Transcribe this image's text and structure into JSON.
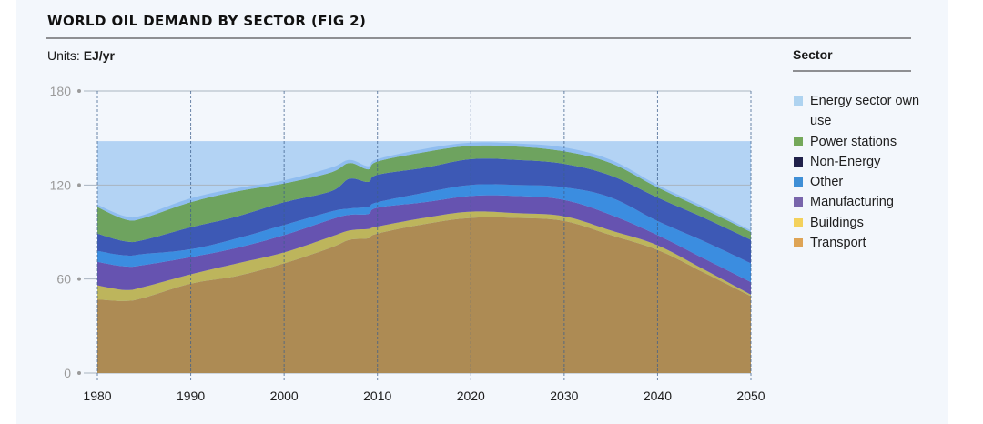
{
  "title": "WORLD OIL DEMAND BY SECTOR (FIG 2)",
  "units_label": "Units:",
  "units_value": "EJ/yr",
  "legend": {
    "title": "Sector",
    "items": [
      {
        "label": "Energy sector own use",
        "color": "#aed3f0"
      },
      {
        "label": "Power stations",
        "color": "#74a85a"
      },
      {
        "label": "Non-Energy",
        "color": "#20214a"
      },
      {
        "label": "Other",
        "color": "#3f8fd6"
      },
      {
        "label": "Manufacturing",
        "color": "#7865ab"
      },
      {
        "label": "Buildings",
        "color": "#f3d15c"
      },
      {
        "label": "Transport",
        "color": "#dea455"
      }
    ]
  },
  "chart_data": {
    "type": "area",
    "stacked": true,
    "title": "WORLD OIL DEMAND BY SECTOR (FIG 2)",
    "xlabel": "",
    "ylabel": "EJ/yr",
    "xlim": [
      1980,
      2050
    ],
    "ylim": [
      0,
      180
    ],
    "yticks": [
      0,
      60,
      120,
      180
    ],
    "xticks": [
      1980,
      1990,
      2000,
      2010,
      2020,
      2030,
      2040,
      2050
    ],
    "grid": "vertical dashed lines at x ticks; horizontal lines at y ticks",
    "highlight_band": {
      "from": 0,
      "to": 148,
      "color": "#b3d3f4"
    },
    "legend_position": "right",
    "x": [
      1980,
      1983,
      1985,
      1990,
      1995,
      2000,
      2005,
      2007,
      2009,
      2010,
      2015,
      2020,
      2025,
      2030,
      2035,
      2040,
      2045,
      2050
    ],
    "series": [
      {
        "name": "Transport",
        "color": "#ad8b54",
        "values": [
          47,
          46,
          48,
          57,
          62,
          70,
          80,
          85,
          86,
          89,
          95,
          99,
          99,
          97,
          88,
          78.5,
          64,
          49
        ]
      },
      {
        "name": "Buildings",
        "color": "#bdb55c",
        "values": [
          9,
          7,
          7,
          6,
          8,
          7,
          7,
          6,
          6,
          4.5,
          4,
          4,
          3,
          3,
          3,
          3,
          2,
          1
        ]
      },
      {
        "name": "Manufacturing",
        "color": "#6653b0",
        "values": [
          15,
          15,
          14,
          11,
          10,
          11,
          11,
          10,
          9.5,
          12,
          10,
          10,
          11,
          10.5,
          10,
          6.5,
          7,
          8
        ]
      },
      {
        "name": "Other",
        "color": "#3b8de0",
        "values": [
          7,
          7,
          7,
          5,
          6,
          6.5,
          5,
          4,
          4.5,
          3.5,
          6,
          7,
          7,
          8,
          11,
          9,
          11,
          12
        ]
      },
      {
        "name": "Non-Energy",
        "color": "#3d59b5",
        "values": [
          11,
          9,
          9,
          14,
          14,
          14.5,
          13,
          19,
          16,
          17.5,
          16,
          16.5,
          16,
          15,
          14,
          15,
          15,
          15
        ]
      },
      {
        "name": "Power stations",
        "color": "#6ea35f",
        "values": [
          17,
          14,
          14,
          16,
          16,
          12,
          12,
          10,
          8,
          8.5,
          10,
          8.5,
          8.5,
          8,
          8,
          6.5,
          5.5,
          5
        ]
      },
      {
        "name": "Energy sector own use",
        "color": "#8fbdf0",
        "values": [
          1.5,
          2,
          2,
          2.5,
          2,
          2,
          3,
          2,
          2,
          1.5,
          2,
          2,
          2,
          2.5,
          2,
          1.5,
          1.5,
          1
        ]
      }
    ]
  }
}
